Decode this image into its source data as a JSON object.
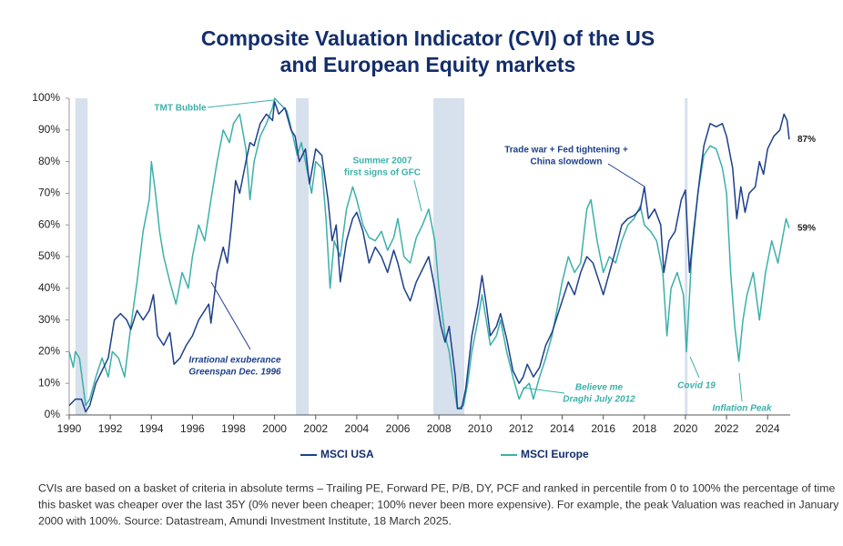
{
  "chart_data": {
    "type": "line",
    "title": [
      "Composite Valuation Indicator (CVI) of the US",
      "and European Equity markets"
    ],
    "xlim": [
      1990,
      2025.1
    ],
    "xticks": [
      1990,
      1992,
      1994,
      1996,
      1998,
      2000,
      2002,
      2004,
      2006,
      2008,
      2010,
      2012,
      2014,
      2016,
      2018,
      2020,
      2022,
      2024
    ],
    "ylim": [
      0,
      100
    ],
    "yticks": [
      {
        "value": 0,
        "label": "0%"
      },
      {
        "value": 10,
        "label": "10%"
      },
      {
        "value": 20,
        "label": "20%"
      },
      {
        "value": 30,
        "label": "30%"
      },
      {
        "value": 40,
        "label": "40%"
      },
      {
        "value": 50,
        "label": "50%"
      },
      {
        "value": 60,
        "label": "60%"
      },
      {
        "value": 70,
        "label": "70%"
      },
      {
        "value": 80,
        "label": "80%"
      },
      {
        "value": 90,
        "label": "90%"
      },
      {
        "value": 100,
        "label": "100%"
      }
    ],
    "grid": false,
    "legend": "bottom",
    "shaded_periods": [
      [
        1990.3,
        1990.9
      ],
      [
        2001.04,
        2001.66
      ],
      [
        2007.73,
        2009.24
      ],
      [
        2019.97,
        2020.1
      ]
    ],
    "shade_color": "#d6e1ed",
    "series": [
      {
        "name": "MSCI USA",
        "color": "#1d3f8c",
        "last_label": "87%",
        "x": [
          1990.0,
          1990.3,
          1990.6,
          1990.8,
          1991.0,
          1991.3,
          1991.6,
          1991.9,
          1992.2,
          1992.5,
          1992.8,
          1993.0,
          1993.3,
          1993.6,
          1993.9,
          1994.1,
          1994.3,
          1994.6,
          1994.9,
          1995.1,
          1995.4,
          1995.7,
          1996.0,
          1996.3,
          1996.6,
          1996.8,
          1996.9,
          1997.2,
          1997.5,
          1997.7,
          1997.9,
          1998.1,
          1998.3,
          1998.6,
          1998.8,
          1999.0,
          1999.3,
          1999.6,
          1999.9,
          2000.0,
          2000.2,
          2000.5,
          2000.8,
          2001.0,
          2001.2,
          2001.5,
          2001.7,
          2002.0,
          2002.3,
          2002.6,
          2002.8,
          2003.0,
          2003.2,
          2003.5,
          2003.8,
          2004.0,
          2004.3,
          2004.6,
          2004.9,
          2005.2,
          2005.5,
          2005.8,
          2006.0,
          2006.3,
          2006.6,
          2006.9,
          2007.2,
          2007.5,
          2007.8,
          2008.1,
          2008.3,
          2008.5,
          2008.8,
          2008.9,
          2009.1,
          2009.3,
          2009.6,
          2009.9,
          2010.1,
          2010.3,
          2010.5,
          2010.8,
          2011.0,
          2011.3,
          2011.6,
          2011.9,
          2012.1,
          2012.3,
          2012.6,
          2012.9,
          2013.2,
          2013.5,
          2013.8,
          2014.0,
          2014.3,
          2014.6,
          2014.9,
          2015.2,
          2015.5,
          2015.8,
          2016.0,
          2016.3,
          2016.6,
          2016.9,
          2017.2,
          2017.5,
          2017.8,
          2018.0,
          2018.2,
          2018.5,
          2018.8,
          2018.95,
          2019.2,
          2019.5,
          2019.8,
          2020.0,
          2020.2,
          2020.4,
          2020.7,
          2020.9,
          2021.2,
          2021.5,
          2021.8,
          2022.0,
          2022.3,
          2022.5,
          2022.7,
          2022.9,
          2023.1,
          2023.4,
          2023.6,
          2023.8,
          2024.0,
          2024.3,
          2024.6,
          2024.8,
          2024.95,
          2025.05
        ],
        "values": [
          3,
          5,
          5,
          1,
          3,
          10,
          14,
          18,
          30,
          32,
          30,
          27,
          33,
          30,
          33,
          38,
          25,
          22,
          26,
          16,
          18,
          22,
          25,
          30,
          33,
          35,
          29,
          45,
          53,
          48,
          60,
          74,
          70,
          80,
          86,
          85,
          92,
          95,
          93,
          99,
          95,
          97,
          90,
          88,
          80,
          84,
          73,
          84,
          82,
          68,
          55,
          60,
          42,
          55,
          62,
          64,
          58,
          48,
          53,
          50,
          45,
          52,
          48,
          40,
          36,
          42,
          46,
          50,
          40,
          28,
          23,
          28,
          12,
          2,
          2,
          8,
          25,
          35,
          44,
          35,
          25,
          28,
          32,
          24,
          14,
          10,
          12,
          16,
          12,
          15,
          22,
          26,
          32,
          36,
          42,
          38,
          45,
          50,
          48,
          42,
          38,
          45,
          52,
          60,
          62,
          63,
          65,
          72,
          62,
          65,
          60,
          45,
          55,
          58,
          68,
          71,
          45,
          58,
          75,
          85,
          92,
          91,
          92,
          88,
          78,
          62,
          72,
          64,
          70,
          72,
          80,
          76,
          84,
          88,
          90,
          95,
          93,
          87
        ]
      },
      {
        "name": "MSCI Europe",
        "color": "#3cb0aa",
        "last_label": "59%",
        "x": [
          1990.0,
          1990.2,
          1990.3,
          1990.5,
          1990.8,
          1991.0,
          1991.3,
          1991.6,
          1991.9,
          1992.1,
          1992.4,
          1992.7,
          1993.0,
          1993.3,
          1993.6,
          1993.9,
          1994.0,
          1994.2,
          1994.4,
          1994.6,
          1994.9,
          1995.2,
          1995.5,
          1995.8,
          1996.0,
          1996.3,
          1996.6,
          1996.9,
          1997.2,
          1997.5,
          1997.8,
          1998.0,
          1998.3,
          1998.6,
          1998.8,
          1999.0,
          1999.3,
          1999.6,
          1999.9,
          2000.0,
          2000.3,
          2000.6,
          2000.9,
          2001.1,
          2001.3,
          2001.5,
          2001.8,
          2002.0,
          2002.3,
          2002.5,
          2002.7,
          2002.9,
          2003.2,
          2003.5,
          2003.8,
          2004.0,
          2004.3,
          2004.6,
          2004.9,
          2005.2,
          2005.5,
          2005.8,
          2006.0,
          2006.3,
          2006.6,
          2006.9,
          2007.2,
          2007.5,
          2007.8,
          2008.0,
          2008.3,
          2008.5,
          2008.7,
          2008.9,
          2009.2,
          2009.4,
          2009.6,
          2009.9,
          2010.1,
          2010.3,
          2010.5,
          2010.8,
          2011.0,
          2011.3,
          2011.6,
          2011.9,
          2012.1,
          2012.4,
          2012.6,
          2012.9,
          2013.2,
          2013.5,
          2013.8,
          2014.0,
          2014.3,
          2014.6,
          2014.9,
          2015.2,
          2015.4,
          2015.7,
          2016.0,
          2016.3,
          2016.6,
          2016.9,
          2017.2,
          2017.5,
          2017.8,
          2018.0,
          2018.3,
          2018.6,
          2018.9,
          2019.1,
          2019.3,
          2019.6,
          2019.9,
          2020.05,
          2020.3,
          2020.6,
          2020.9,
          2021.2,
          2021.5,
          2021.8,
          2022.0,
          2022.2,
          2022.4,
          2022.6,
          2022.8,
          2023.0,
          2023.3,
          2023.6,
          2023.9,
          2024.2,
          2024.5,
          2024.7,
          2024.9,
          2025.05
        ],
        "values": [
          20,
          15,
          20,
          18,
          3,
          5,
          12,
          18,
          12,
          20,
          18,
          12,
          28,
          42,
          58,
          68,
          80,
          70,
          58,
          50,
          42,
          35,
          45,
          40,
          50,
          60,
          55,
          68,
          80,
          90,
          86,
          92,
          95,
          84,
          68,
          80,
          88,
          92,
          97,
          100,
          98,
          96,
          88,
          82,
          86,
          80,
          70,
          80,
          78,
          62,
          40,
          55,
          50,
          65,
          72,
          68,
          60,
          56,
          55,
          58,
          52,
          56,
          62,
          50,
          48,
          56,
          60,
          65,
          55,
          40,
          25,
          20,
          10,
          2,
          3,
          10,
          20,
          30,
          38,
          30,
          22,
          25,
          30,
          20,
          12,
          5,
          8,
          10,
          5,
          12,
          18,
          25,
          35,
          42,
          50,
          45,
          48,
          65,
          68,
          55,
          45,
          50,
          48,
          55,
          60,
          62,
          66,
          60,
          58,
          55,
          45,
          25,
          40,
          45,
          38,
          20,
          50,
          70,
          82,
          85,
          84,
          78,
          70,
          45,
          28,
          17,
          30,
          38,
          45,
          30,
          45,
          55,
          48,
          55,
          62,
          59
        ]
      }
    ],
    "annotations": [
      {
        "lines": [
          "TMT Bubble"
        ],
        "color": "#3cb0aa",
        "italic": false
      },
      {
        "lines": [
          "Summer 2007",
          "first signs of GFC"
        ],
        "color": "#3cb0aa",
        "italic": false
      },
      {
        "lines": [
          "Irrational exuberance",
          "Greenspan  Dec. 1996"
        ],
        "color": "#1d3f8c",
        "italic": true
      },
      {
        "lines": [
          "Trade war + Fed tightening +",
          "China slowdown"
        ],
        "color": "#1d3f8c",
        "italic": false
      },
      {
        "lines": [
          "Believe me",
          "Draghi July 2012"
        ],
        "color": "#3cb0aa",
        "italic": true
      },
      {
        "lines": [
          "Covid 19"
        ],
        "color": "#3cb0aa",
        "italic": true
      },
      {
        "lines": [
          "Inflation Peak"
        ],
        "color": "#3cb0aa",
        "italic": true
      }
    ],
    "footnote": [
      "CVIs are based on a basket of criteria in absolute terms – Trailing PE, Forward PE, P/B, DY, PCF and ranked in percentile from 0 to 100% the percentage of time",
      "this basket was cheaper over the last 35Y (0% never been cheaper; 100% never been more expensive). For example, the peak Valuation was reached in January",
      "2000 with 100%. Source: Datastream, Amundi Investment Institute, 18 March 2025."
    ]
  }
}
